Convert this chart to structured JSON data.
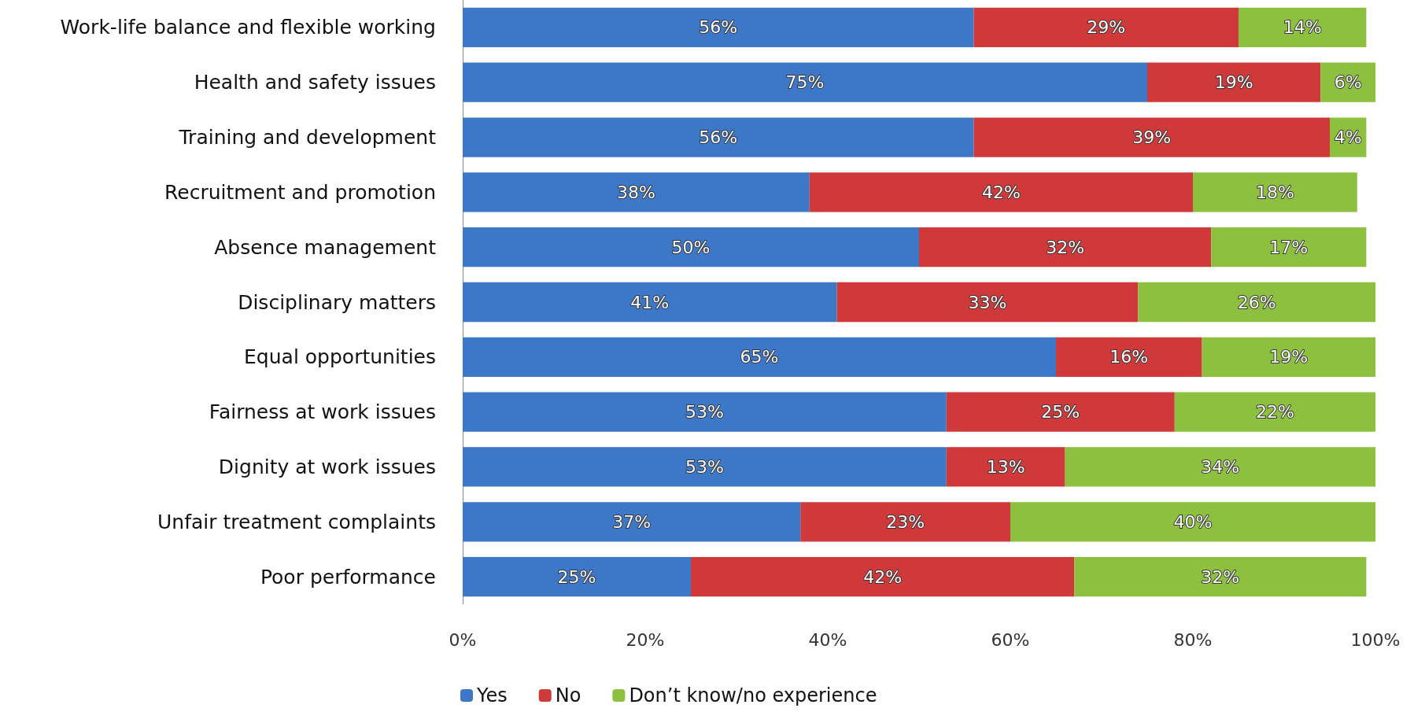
{
  "chart_data": {
    "type": "bar",
    "orientation": "horizontal",
    "stacked": true,
    "legend": "bottom",
    "grid": false,
    "categories": [
      "Work-life balance and flexible working",
      "Health and safety issues",
      "Training and development",
      "Recruitment and promotion",
      "Absence management",
      "Disciplinary matters",
      "Equal opportunities",
      "Fairness at work issues",
      "Dignity at work issues",
      "Unfair treatment complaints",
      "Poor performance"
    ],
    "xlim": [
      0,
      100
    ],
    "xticks": [
      {
        "value": 0,
        "label": "0%"
      },
      {
        "value": 20,
        "label": "20%"
      },
      {
        "value": 40,
        "label": "40%"
      },
      {
        "value": 60,
        "label": "60%"
      },
      {
        "value": 80,
        "label": "80%"
      },
      {
        "value": 100,
        "label": "100%"
      }
    ],
    "series": [
      {
        "name": "Yes",
        "color": "#3d78c8",
        "values": [
          56,
          75,
          56,
          38,
          50,
          41,
          65,
          53,
          53,
          37,
          25
        ],
        "value_labels": [
          "56%",
          "75%",
          "56%",
          "38%",
          "50%",
          "41%",
          "65%",
          "53%",
          "53%",
          "37%",
          "25%"
        ]
      },
      {
        "name": "No",
        "color": "#d0393a",
        "values": [
          29,
          19,
          39,
          42,
          32,
          33,
          16,
          25,
          13,
          23,
          42
        ],
        "value_labels": [
          "29%",
          "19%",
          "39%",
          "42%",
          "32%",
          "33%",
          "16%",
          "25%",
          "13%",
          "23%",
          "42%"
        ]
      },
      {
        "name": "Don’t know/no experience",
        "color": "#8dc03f",
        "values": [
          14,
          6,
          4,
          18,
          17,
          26,
          19,
          22,
          34,
          40,
          32
        ],
        "value_labels": [
          "14%",
          "6%",
          "4%",
          "18%",
          "17%",
          "26%",
          "19%",
          "22%",
          "34%",
          "40%",
          "32%"
        ]
      }
    ]
  }
}
